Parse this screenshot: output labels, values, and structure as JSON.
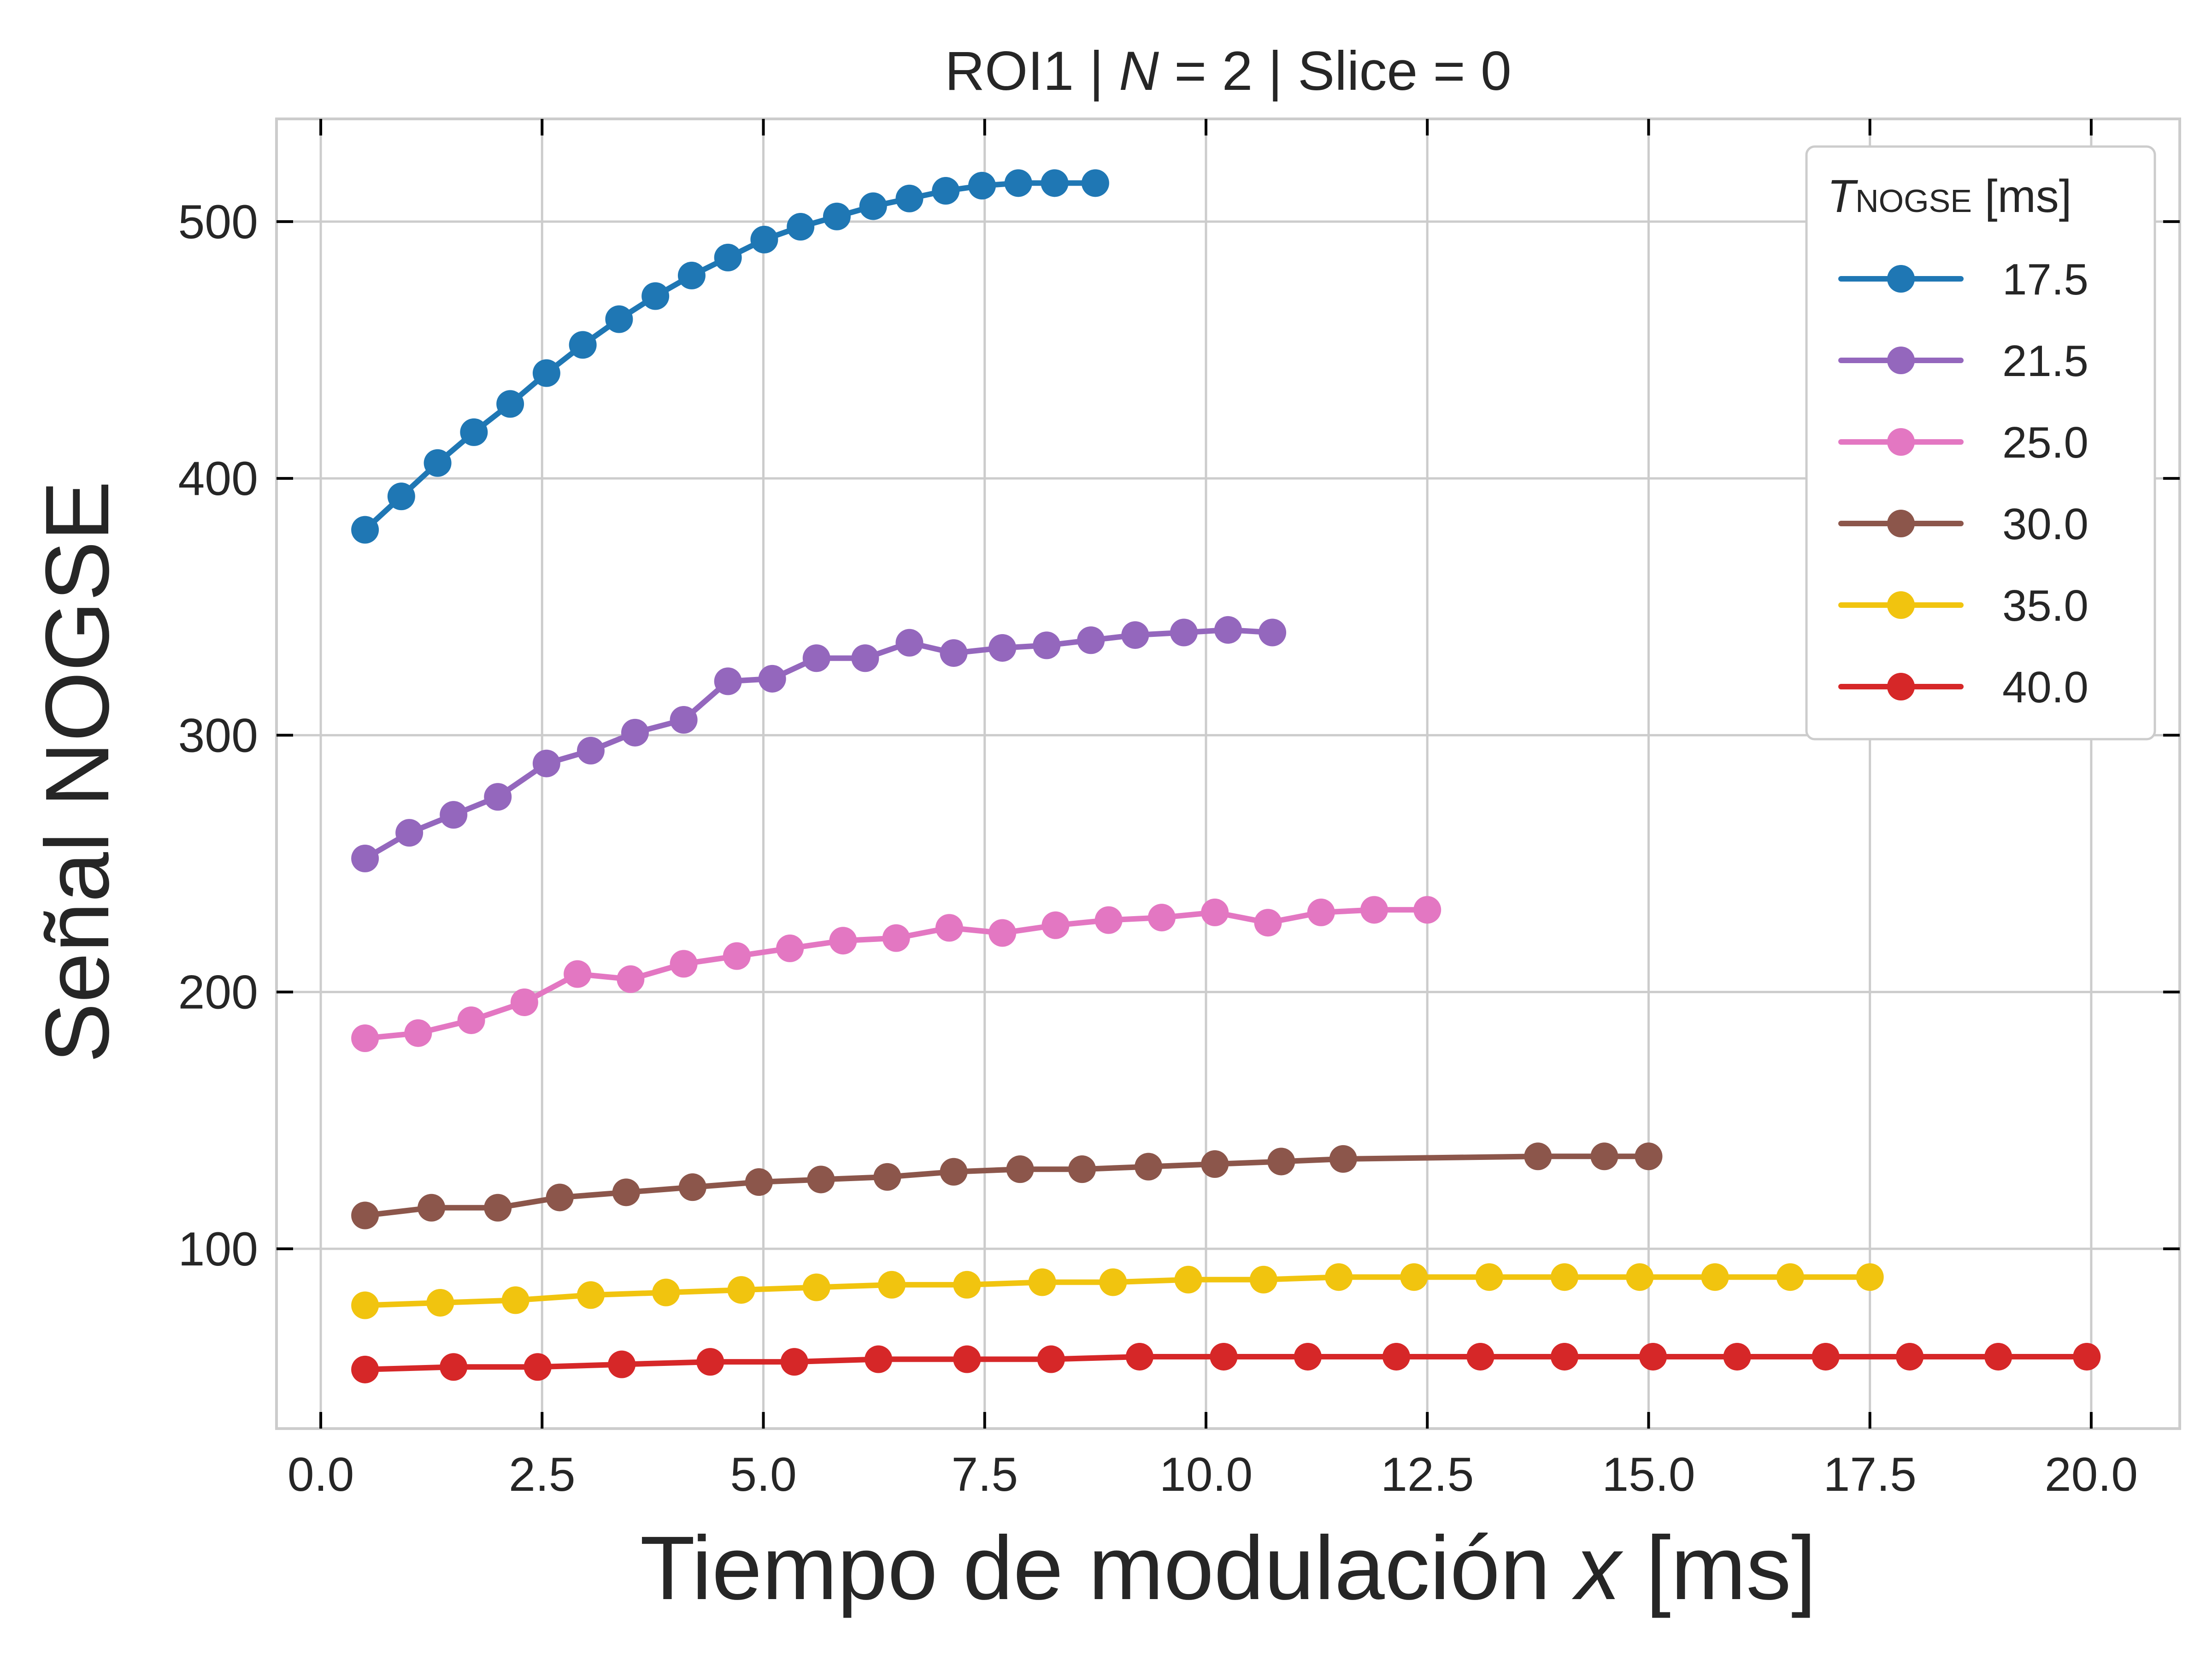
{
  "chart_data": {
    "type": "line",
    "title_parts": [
      "ROI1 | ",
      "N",
      " = 2 | Slice = 0"
    ],
    "xlabel_parts": [
      "Tiempo de modulación ",
      "x",
      " [ms]"
    ],
    "ylabel": "Señal NOGSE",
    "legend_title_parts": [
      "T",
      "NOGSE",
      " [ms]"
    ],
    "legend_position": "top-right",
    "grid": true,
    "xlim": [
      -0.5,
      21.0
    ],
    "ylim": [
      30,
      540
    ],
    "xticks": [
      0.0,
      2.5,
      5.0,
      7.5,
      10.0,
      12.5,
      15.0,
      17.5,
      20.0
    ],
    "xtick_labels": [
      "0.0",
      "2.5",
      "5.0",
      "7.5",
      "10.0",
      "12.5",
      "15.0",
      "17.5",
      "20.0"
    ],
    "yticks": [
      100,
      200,
      300,
      400,
      500
    ],
    "ytick_labels": [
      "100",
      "200",
      "300",
      "400",
      "500"
    ],
    "series": [
      {
        "name": "17.5",
        "color": "#1f77b4",
        "x": [
          0.5,
          0.91,
          1.32,
          1.73,
          2.14,
          2.55,
          2.96,
          3.37,
          3.78,
          4.19,
          4.6,
          5.01,
          5.42,
          5.83,
          6.24,
          6.65,
          7.06,
          7.47,
          7.88,
          8.29,
          8.75
        ],
        "y": [
          380,
          393,
          406,
          418,
          429,
          441,
          452,
          462,
          471,
          479,
          486,
          493,
          498,
          502,
          506,
          509,
          512,
          514,
          515,
          515,
          515
        ]
      },
      {
        "name": "21.5",
        "color": "#9467bd",
        "x": [
          0.5,
          1.0,
          1.5,
          2.0,
          2.55,
          3.05,
          3.55,
          4.1,
          4.6,
          5.1,
          5.6,
          6.15,
          6.65,
          7.15,
          7.7,
          8.2,
          8.7,
          9.2,
          9.75,
          10.25,
          10.75
        ],
        "y": [
          252,
          262,
          269,
          276,
          289,
          294,
          301,
          306,
          321,
          322,
          330,
          330,
          336,
          332,
          334,
          335,
          337,
          339,
          340,
          341,
          340
        ]
      },
      {
        "name": "25.0",
        "color": "#e377c2",
        "x": [
          0.5,
          1.1,
          1.7,
          2.3,
          2.9,
          3.5,
          4.1,
          4.7,
          5.3,
          5.9,
          6.5,
          7.1,
          7.7,
          8.3,
          8.9,
          9.5,
          10.1,
          10.7,
          11.3,
          11.9,
          12.5
        ],
        "y": [
          182,
          184,
          189,
          196,
          207,
          205,
          211,
          214,
          217,
          220,
          221,
          225,
          223,
          226,
          228,
          229,
          231,
          227,
          231,
          232,
          232
        ]
      },
      {
        "name": "30.0",
        "color": "#8c564b",
        "x": [
          0.5,
          1.25,
          2.0,
          2.7,
          3.45,
          4.2,
          4.95,
          5.65,
          6.4,
          7.15,
          7.9,
          8.6,
          9.35,
          10.1,
          10.85,
          11.55,
          13.75,
          14.5,
          15.0
        ],
        "y": [
          113,
          116,
          116,
          120,
          122,
          124,
          126,
          127,
          128,
          130,
          131,
          131,
          132,
          133,
          134,
          135,
          136,
          136,
          136
        ]
      },
      {
        "name": "35.0",
        "color": "#f1c40f",
        "x": [
          0.5,
          1.35,
          2.2,
          3.05,
          3.9,
          4.75,
          5.6,
          6.45,
          7.3,
          8.15,
          8.95,
          9.8,
          10.65,
          11.5,
          12.35,
          13.2,
          14.05,
          14.9,
          15.75,
          16.6,
          17.5
        ],
        "y": [
          78,
          79,
          80,
          82,
          83,
          84,
          85,
          86,
          86,
          87,
          87,
          88,
          88,
          89,
          89,
          89,
          89,
          89,
          89,
          89,
          89
        ]
      },
      {
        "name": "40.0",
        "color": "#d62728",
        "x": [
          0.5,
          1.5,
          2.45,
          3.4,
          4.4,
          5.35,
          6.3,
          7.3,
          8.25,
          9.25,
          10.2,
          11.15,
          12.15,
          13.1,
          14.05,
          15.05,
          16.0,
          17.0,
          17.95,
          18.95,
          19.95
        ],
        "y": [
          53,
          54,
          54,
          55,
          56,
          56,
          57,
          57,
          57,
          58,
          58,
          58,
          58,
          58,
          58,
          58,
          58,
          58,
          58,
          58,
          58
        ]
      }
    ]
  }
}
